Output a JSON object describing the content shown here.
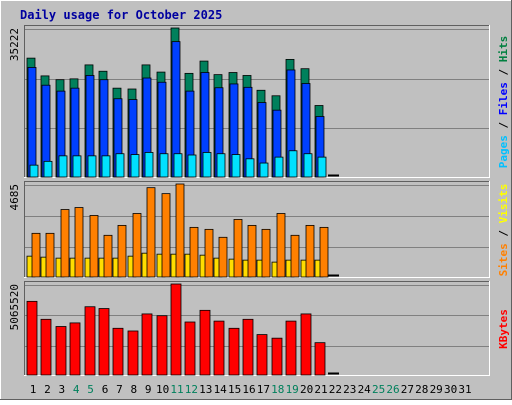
{
  "chart_data": {
    "type": "bar",
    "title": "Daily usage for October 2025",
    "categories": [
      "1",
      "2",
      "3",
      "4",
      "5",
      "6",
      "7",
      "8",
      "9",
      "10",
      "11",
      "12",
      "13",
      "14",
      "15",
      "16",
      "17",
      "18",
      "19",
      "20",
      "21",
      "22",
      "23",
      "24",
      "25",
      "26",
      "27",
      "28",
      "29",
      "30",
      "31"
    ],
    "weekend_days": [
      "4",
      "5",
      "11",
      "12",
      "18",
      "19",
      "25",
      "26"
    ],
    "panels": [
      {
        "id": "top",
        "ymax": 35222,
        "ymax_label": "35222",
        "side_labels": [
          {
            "text": "Pages",
            "color": "#00c0ff"
          },
          {
            "text": " / ",
            "color": "#000000"
          },
          {
            "text": "Files",
            "color": "#0000ff"
          },
          {
            "text": " / ",
            "color": "#000000"
          },
          {
            "text": "Hits",
            "color": "#008040"
          }
        ],
        "series": [
          {
            "name": "Hits",
            "color": "#00805c",
            "values": [
              28100,
              23900,
              23000,
              23200,
              26500,
              25000,
              21000,
              20800,
              26500,
              24800,
              35222,
              24500,
              27400,
              24200,
              24700,
              24000,
              20500,
              19200,
              27800,
              25600,
              16900,
              0,
              0,
              0,
              0,
              0,
              0,
              0,
              0,
              0,
              0
            ]
          },
          {
            "name": "Files",
            "color": "#0040ff",
            "values": [
              25900,
              21700,
              20300,
              21000,
              24000,
              23000,
              18500,
              18300,
              23400,
              22400,
              32000,
              20300,
              24700,
              21100,
              22000,
              21200,
              17600,
              15800,
              25300,
              22100,
              14300,
              0,
              0,
              0,
              0,
              0,
              0,
              0,
              0,
              0,
              0
            ]
          },
          {
            "name": "Pages",
            "color": "#00e0ff",
            "values": [
              2800,
              3700,
              5000,
              5000,
              5000,
              5000,
              5500,
              5300,
              5800,
              5500,
              5500,
              5200,
              5800,
              5500,
              5300,
              4300,
              3300,
              4700,
              6200,
              5500,
              4700,
              0,
              0,
              0,
              0,
              0,
              0,
              0,
              0,
              0,
              0
            ]
          }
        ]
      },
      {
        "id": "middle",
        "ymax": 4685,
        "ymax_label": "4685",
        "side_labels": [
          {
            "text": "Sites",
            "color": "#ff8000"
          },
          {
            "text": " / ",
            "color": "#000000"
          },
          {
            "text": "Visits",
            "color": "#ffff00"
          }
        ],
        "series": [
          {
            "name": "Visits",
            "color": "#ffdd00",
            "values": [
              1050,
              1000,
              950,
              950,
              950,
              950,
              950,
              1050,
              1200,
              1150,
              1150,
              1150,
              1100,
              950,
              900,
              850,
              850,
              750,
              850,
              850,
              850,
              0,
              0,
              0,
              0,
              0,
              0,
              0,
              0,
              0,
              0
            ]
          },
          {
            "name": "Sites",
            "color": "#ff8000",
            "values": [
              2200,
              2200,
              3400,
              3500,
              3100,
              2100,
              2600,
              3200,
              4500,
              4200,
              4685,
              2500,
              2400,
              2000,
              2900,
              2600,
              2400,
              3200,
              2100,
              2600,
              2500,
              0,
              0,
              0,
              0,
              0,
              0,
              0,
              0,
              0,
              0
            ]
          }
        ]
      },
      {
        "id": "bottom",
        "ymax": 5065520,
        "ymax_label": "5065520",
        "side_labels": [
          {
            "text": "KBytes",
            "color": "#ff0000"
          }
        ],
        "series": [
          {
            "name": "KBytes",
            "color": "#ff0000",
            "values": [
              4100000,
              3100000,
              2700000,
              2900000,
              3800000,
              3700000,
              2600000,
              2450000,
              3400000,
              3300000,
              5065520,
              2950000,
              3600000,
              3000000,
              2600000,
              3100000,
              2250000,
              2050000,
              3000000,
              3400000,
              1800000,
              0,
              0,
              0,
              0,
              0,
              0,
              0,
              0,
              0,
              0
            ]
          }
        ]
      }
    ]
  }
}
